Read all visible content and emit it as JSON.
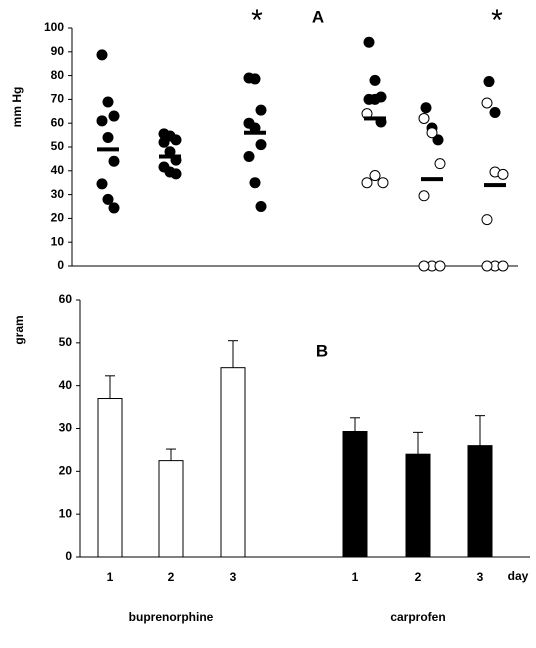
{
  "chart_data": [
    {
      "type": "dotplot",
      "title": "A",
      "ylabel": "mm Hg",
      "ylim": [
        0,
        100
      ],
      "yticks": [
        0,
        10,
        20,
        30,
        40,
        50,
        60,
        70,
        80,
        90,
        100
      ],
      "groups": [
        {
          "filled": [
            88.7,
            68.9,
            63,
            61,
            54,
            44,
            34.5,
            28,
            24.4
          ],
          "open": [],
          "mean": 49
        },
        {
          "filled": [
            55.5,
            54.6,
            53,
            52,
            48,
            44.5,
            41.6,
            39.5,
            38.7
          ],
          "open": [],
          "mean": 46
        },
        {
          "filled": [
            79,
            78.6,
            65.5,
            60,
            58,
            51,
            46,
            35,
            25
          ],
          "open": [],
          "mean": 56,
          "annotation": "*"
        },
        {
          "filled": [
            94,
            78,
            71,
            70,
            70,
            60.5
          ],
          "open": [
            64,
            38,
            35,
            35
          ],
          "mean": 62
        },
        {
          "filled": [
            66.5,
            58,
            53
          ],
          "open": [
            62,
            56,
            43,
            29.5,
            0,
            0,
            0
          ],
          "mean": 36.5
        },
        {
          "filled": [
            77.5,
            64.5
          ],
          "open": [
            68.5,
            39.5,
            38.5,
            19.5,
            0,
            0,
            0
          ],
          "mean": 34,
          "annotation": "*"
        }
      ]
    },
    {
      "type": "bar",
      "title": "B",
      "ylabel": "gram",
      "xlabel": "day",
      "categories": [
        "1",
        "2",
        "3"
      ],
      "ylim": [
        0,
        60
      ],
      "yticks": [
        0,
        10,
        20,
        30,
        40,
        50,
        60
      ],
      "series": [
        {
          "name": "buprenorphine",
          "color": "#ffffff",
          "values": [
            37,
            22.5,
            44.2
          ],
          "errors": [
            5.3,
            2.7,
            6.3
          ]
        },
        {
          "name": "carprofen",
          "color": "#000000",
          "values": [
            29.3,
            24,
            26
          ],
          "errors": [
            3.2,
            5.1,
            7
          ]
        }
      ]
    }
  ]
}
